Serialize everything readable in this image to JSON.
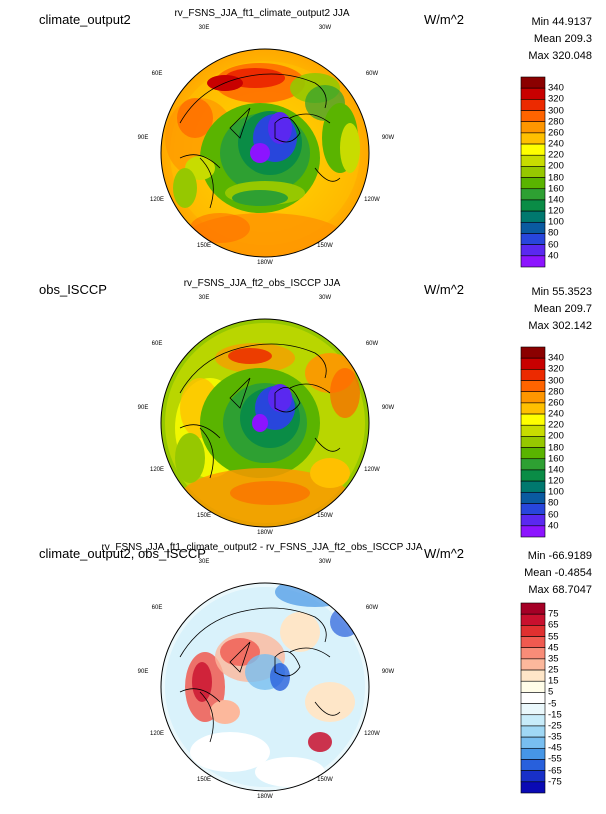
{
  "panels": [
    {
      "case_name": "climate_output2",
      "title": "rv_FSNS_JJA_ft1_climate_output2  JJA",
      "units": "W/m^2",
      "stats": {
        "min": "Min 44.9137",
        "mean": "Mean 209.3",
        "max": "Max 320.048"
      },
      "colorbar": {
        "labels": [
          "340",
          "320",
          "300",
          "280",
          "260",
          "240",
          "220",
          "200",
          "180",
          "160",
          "140",
          "120",
          "100",
          "80",
          "60",
          "40"
        ],
        "colors": [
          "#8b0000",
          "#c80000",
          "#ec2a00",
          "#ff6400",
          "#ff9600",
          "#ffc000",
          "#ffff00",
          "#c8dc00",
          "#96c800",
          "#5ab400",
          "#2ea032",
          "#0a8c46",
          "#00786e",
          "#0a5aa0",
          "#2846dc",
          "#5a28f0",
          "#8c14ff"
        ]
      }
    },
    {
      "case_name": "obs_ISCCP",
      "title": "rv_FSNS_JJA_ft2_obs_ISCCP  JJA",
      "units": "W/m^2",
      "stats": {
        "min": "Min 55.3523",
        "mean": "Mean 209.7",
        "max": "Max 302.142"
      },
      "colorbar": {
        "labels": [
          "340",
          "320",
          "300",
          "280",
          "260",
          "240",
          "220",
          "200",
          "180",
          "160",
          "140",
          "120",
          "100",
          "80",
          "60",
          "40"
        ],
        "colors": [
          "#8b0000",
          "#c80000",
          "#ec2a00",
          "#ff6400",
          "#ff9600",
          "#ffc000",
          "#ffff00",
          "#c8dc00",
          "#96c800",
          "#5ab400",
          "#2ea032",
          "#0a8c46",
          "#00786e",
          "#0a5aa0",
          "#2846dc",
          "#5a28f0",
          "#8c14ff"
        ]
      }
    },
    {
      "case_name": "climate_output2, obs_ISCCP",
      "title": "rv_FSNS_JJA_ft1_climate_output2 - rv_FSNS_JJA_ft2_obs_ISCCP  JJA",
      "units": "W/m^2",
      "stats": {
        "min": "Min -66.9189",
        "mean": "Mean -0.4854",
        "max": "Max 68.7047"
      },
      "colorbar": {
        "labels": [
          "75",
          "65",
          "55",
          "45",
          "35",
          "25",
          "15",
          "5",
          "-5",
          "-15",
          "-25",
          "-35",
          "-45",
          "-55",
          "-65",
          "-75"
        ],
        "colors": [
          "#a50026",
          "#c8102e",
          "#e03030",
          "#f05a50",
          "#f88c78",
          "#fcb89c",
          "#fee6c8",
          "#fffde8",
          "#ffffff",
          "#eaf8fc",
          "#c8ecfa",
          "#a0d8f5",
          "#78bef0",
          "#4696e6",
          "#2860dc",
          "#1830c8",
          "#0a0ab4"
        ]
      }
    }
  ],
  "lon_labels": [
    "30E",
    "30W",
    "60E",
    "60W",
    "90E",
    "90W",
    "120E",
    "120W",
    "150E",
    "150W",
    "180W"
  ]
}
